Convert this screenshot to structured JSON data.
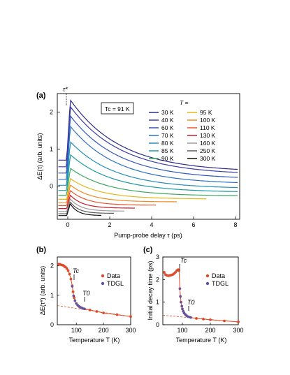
{
  "chart_data": [
    {
      "panel": "(a)",
      "type": "line",
      "xlabel": "Pump-probe delay τ  (ps)",
      "ylabel": "ΔE(τ)  (arb. units)",
      "xlim": [
        -0.5,
        8.2
      ],
      "ylim": [
        -0.9,
        2.5
      ],
      "xticks": [
        0,
        2,
        4,
        6,
        8
      ],
      "yticks": [
        0,
        1,
        2
      ],
      "marker_label": "τ*",
      "tc_box": "Tc = 91 K",
      "legend_title": "T =",
      "legend_location": "right",
      "series": [
        {
          "name": "30 K",
          "color": "#2e2a8a",
          "peak": 2.33,
          "tail": 0.38,
          "baseline": 0.7,
          "tau": 2.4,
          "end": 8.1
        },
        {
          "name": "40 K",
          "color": "#3b3aa6",
          "peak": 2.15,
          "tail": 0.3,
          "baseline": 0.52,
          "tau": 2.4,
          "end": 8.1
        },
        {
          "name": "60 K",
          "color": "#2f56b8",
          "peak": 1.9,
          "tail": 0.18,
          "baseline": 0.35,
          "tau": 2.3,
          "end": 8.1
        },
        {
          "name": "70 K",
          "color": "#2a72c0",
          "peak": 1.62,
          "tail": 0.05,
          "baseline": 0.18,
          "tau": 2.2,
          "end": 8.1
        },
        {
          "name": "80 K",
          "color": "#238cb8",
          "peak": 1.2,
          "tail": -0.07,
          "baseline": 0.02,
          "tau": 2.1,
          "end": 8.1
        },
        {
          "name": "85 K",
          "color": "#1a9aa0",
          "peak": 0.85,
          "tail": -0.17,
          "baseline": -0.12,
          "tau": 2.0,
          "end": 8.1
        },
        {
          "name": "90 K",
          "color": "#3aa860",
          "peak": 0.48,
          "tail": -0.27,
          "baseline": -0.25,
          "tau": 1.8,
          "end": 8.1
        },
        {
          "name": "95 K",
          "color": "#e2b81a",
          "peak": 0.2,
          "tail": -0.35,
          "baseline": -0.36,
          "tau": 1.4,
          "end": 6.6
        },
        {
          "name": "100 K",
          "color": "#ef8c1f",
          "peak": 0.03,
          "tail": -0.43,
          "baseline": -0.45,
          "tau": 1.0,
          "end": 5.2
        },
        {
          "name": "110 K",
          "color": "#e8552b",
          "peak": -0.12,
          "tail": -0.52,
          "baseline": -0.53,
          "tau": 0.8,
          "end": 4.2
        },
        {
          "name": "130 K",
          "color": "#c81e2a",
          "peak": -0.25,
          "tail": -0.6,
          "baseline": -0.61,
          "tau": 0.6,
          "end": 3.2
        },
        {
          "name": "160 K",
          "color": "#9a9a9a",
          "peak": -0.35,
          "tail": -0.68,
          "baseline": -0.69,
          "tau": 0.5,
          "end": 2.7
        },
        {
          "name": "250 K",
          "color": "#5a5a5a",
          "peak": -0.43,
          "tail": -0.74,
          "baseline": -0.75,
          "tau": 0.4,
          "end": 2.2
        },
        {
          "name": "300 K",
          "color": "#111111",
          "peak": -0.48,
          "tail": -0.8,
          "baseline": -0.8,
          "tau": 0.35,
          "end": 1.6
        }
      ]
    },
    {
      "panel": "(b)",
      "type": "scatter",
      "xlabel": "Temperature  T   (K)",
      "ylabel": "ΔE(τ*)  (arb. units)",
      "xlim": [
        30,
        300
      ],
      "ylim": [
        0,
        2.3
      ],
      "xticks": [
        100,
        200,
        300
      ],
      "yticks": [
        0,
        1,
        2
      ],
      "annotations": [
        "Tc",
        "T0"
      ],
      "legend": [
        "Data",
        "TDGL"
      ],
      "data_color": "#e04a2a",
      "tdgl_color": "#5a55a8",
      "reference_line": {
        "x": [
          30,
          300
        ],
        "y": [
          0.65,
          0.28
        ]
      },
      "x": [
        35,
        40,
        45,
        50,
        55,
        60,
        65,
        70,
        75,
        80,
        85,
        88,
        90,
        92,
        95,
        100,
        105,
        110,
        115,
        120,
        130,
        150,
        175,
        200,
        250,
        300
      ],
      "data": [
        2.06,
        2.05,
        2.03,
        2.02,
        1.99,
        1.96,
        1.91,
        1.84,
        1.72,
        1.55,
        1.32,
        1.12,
        0.98,
        0.92,
        0.82,
        0.72,
        0.66,
        0.62,
        0.59,
        0.57,
        0.54,
        0.5,
        0.45,
        0.4,
        0.34,
        0.28
      ],
      "tdgl": {
        "x": [
          85,
          90,
          95,
          100,
          105,
          110,
          115,
          120,
          125,
          130
        ],
        "y": [
          1.3,
          0.98,
          0.82,
          0.72,
          0.66,
          0.62,
          0.59,
          0.57,
          0.55,
          0.54
        ]
      }
    },
    {
      "panel": "(c)",
      "type": "scatter",
      "xlabel": "Temperature  T   (K)",
      "ylabel": "Initial decay time  (ps)",
      "xlim": [
        30,
        300
      ],
      "ylim": [
        0,
        3
      ],
      "xticks": [
        100,
        200,
        300
      ],
      "yticks": [
        0,
        1,
        2,
        3
      ],
      "annotations": [
        "Tc",
        "T0"
      ],
      "legend": [
        "Data",
        "TDGL"
      ],
      "data_color": "#e04a2a",
      "tdgl_color": "#5a55a8",
      "reference_line": {
        "x": [
          30,
          300
        ],
        "y": [
          0.42,
          0.12
        ]
      },
      "x": [
        35,
        40,
        45,
        50,
        55,
        60,
        65,
        70,
        75,
        80,
        85,
        88,
        91,
        93,
        95,
        98,
        100,
        103,
        106,
        110,
        115,
        120,
        130,
        150,
        175,
        200,
        250,
        300
      ],
      "data": [
        2.32,
        2.22,
        2.18,
        2.17,
        2.18,
        2.2,
        2.22,
        2.26,
        2.32,
        2.4,
        2.44,
        2.4,
        1.6,
        1.25,
        1.0,
        0.82,
        0.7,
        0.6,
        0.52,
        0.46,
        0.4,
        0.36,
        0.32,
        0.28,
        0.25,
        0.22,
        0.17,
        0.13
      ],
      "tdgl": {
        "x": [
          91,
          93,
          95,
          98,
          100,
          103,
          106,
          110,
          115,
          120,
          125,
          130
        ],
        "y": [
          1.6,
          1.25,
          1.0,
          0.82,
          0.7,
          0.6,
          0.52,
          0.46,
          0.4,
          0.36,
          0.34,
          0.32
        ]
      }
    }
  ]
}
